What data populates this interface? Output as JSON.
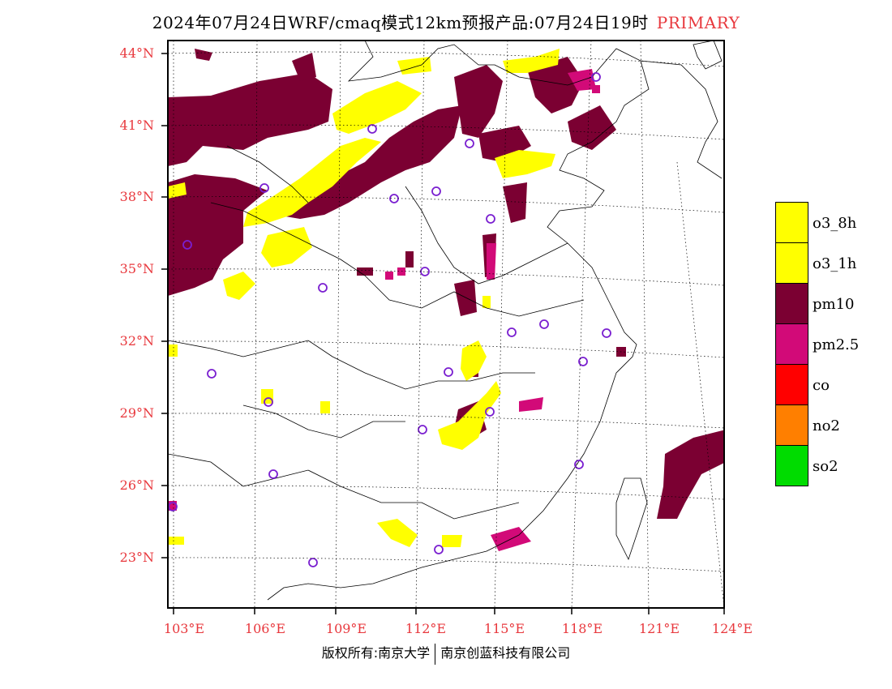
{
  "title": "2024年07月24日WRF/cmaq模式12km预报产品:07月24日19时",
  "title_tag": "PRIMARY",
  "lat_labels": [
    "44°N",
    "41°N",
    "38°N",
    "35°N",
    "32°N",
    "29°N",
    "26°N",
    "23°N"
  ],
  "lon_labels": [
    "103°E",
    "106°E",
    "109°E",
    "112°E",
    "115°E",
    "118°E",
    "121°E",
    "124°E"
  ],
  "legend": [
    {
      "label": "o3_8h",
      "color": "#ffff00"
    },
    {
      "label": "o3_1h",
      "color": "#ffff00"
    },
    {
      "label": "pm10",
      "color": "#7b0032"
    },
    {
      "label": "pm2.5",
      "color": "#d20a78"
    },
    {
      "label": "co",
      "color": "#ff0000"
    },
    {
      "label": "no2",
      "color": "#ff7f00"
    },
    {
      "label": "so2",
      "color": "#00dc00"
    }
  ],
  "copyright_left": "版权所有:南京大学",
  "copyright_right": "南京创蓝科技有限公司",
  "colors": {
    "pm10": "#7b0032",
    "pm25": "#d20a78",
    "o3": "#ffff00",
    "marker": "#7a1fd0",
    "axis_label": "#e8383d"
  }
}
